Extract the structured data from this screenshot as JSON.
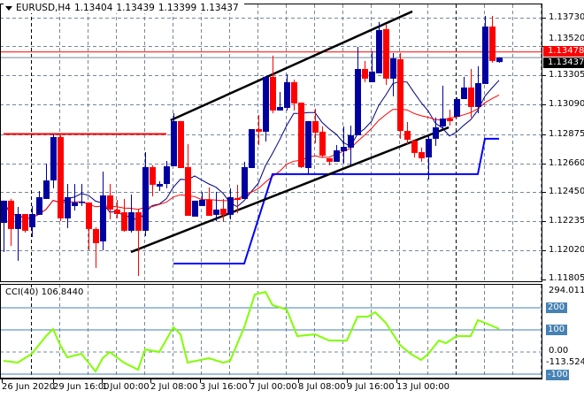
{
  "header": {
    "symbol": "EURUSD,H4",
    "open": "1.13404",
    "high": "1.13439",
    "low": "1.13399",
    "close": "1.13437",
    "menu_icon": "triangle-down-icon"
  },
  "price_axis": {
    "labels": [
      "1.13730",
      "1.13520",
      "1.13305",
      "1.13090",
      "1.12875",
      "1.12660",
      "1.12450",
      "1.12235",
      "1.12020",
      "1.11805"
    ],
    "ask_label": "1.13478",
    "bid_label": "1.13437"
  },
  "time_axis": {
    "labels": [
      "26 Jun 2020",
      "29 Jun 16:00",
      "1 Jul 00:00",
      "2 Jul 08:00",
      "3 Jul 16:00",
      "7 Jul 00:00",
      "8 Jul 08:00",
      "9 Jul 16:00",
      "13 Jul 00:00"
    ]
  },
  "cci": {
    "title": "CCI(40) 106.8440",
    "max_label": "294.0114",
    "min_label": "-113.5241",
    "levels": [
      "200",
      "100",
      "0.00",
      "-100"
    ]
  },
  "colors": {
    "bull": "#0000a0",
    "bear": "#ff0000",
    "fast_ma": "#000080",
    "slow_ma": "#ff0000",
    "step": "#0000ff",
    "cci": "#80ff00",
    "level": "#4682b4"
  },
  "chart_data": {
    "type": "candlestick",
    "price_range": [
      1.11805,
      1.1373
    ],
    "candles": [
      [
        1.12222,
        1.12385,
        1.12008,
        1.12385
      ],
      [
        1.12385,
        1.12398,
        1.12053,
        1.12177
      ],
      [
        1.12177,
        1.12339,
        1.11943,
        1.12287
      ],
      [
        1.12287,
        1.12287,
        1.12151,
        1.12164
      ],
      [
        1.1219,
        1.12346,
        1.12118,
        1.12287
      ],
      [
        1.12281,
        1.12456,
        1.12281,
        1.12411
      ],
      [
        1.12398,
        1.12658,
        1.12398,
        1.12534
      ],
      [
        1.12534,
        1.12872,
        1.12476,
        1.12853
      ],
      [
        1.12853,
        1.12866,
        1.12235,
        1.12255
      ],
      [
        1.12255,
        1.12508,
        1.12183,
        1.12411
      ],
      [
        1.12346,
        1.12508,
        1.12313,
        1.12372
      ],
      [
        1.12372,
        1.12508,
        1.12346,
        1.12378
      ],
      [
        1.12372,
        1.12372,
        1.12021,
        1.12177
      ],
      [
        1.12177,
        1.1219,
        1.11891,
        1.12073
      ],
      [
        1.12086,
        1.12599,
        1.12021,
        1.12424
      ],
      [
        1.12424,
        1.12508,
        1.12248,
        1.1232
      ],
      [
        1.1232,
        1.12391,
        1.12255,
        1.12287
      ],
      [
        1.123,
        1.12398,
        1.12157,
        1.12164
      ],
      [
        1.12164,
        1.12431,
        1.12151,
        1.123
      ],
      [
        1.123,
        1.12326,
        1.11832,
        1.12164
      ],
      [
        1.12164,
        1.12742,
        1.12125,
        1.12632
      ],
      [
        1.12632,
        1.12645,
        1.12417,
        1.12502
      ],
      [
        1.12489,
        1.12528,
        1.12456,
        1.12508
      ],
      [
        1.12508,
        1.12677,
        1.12476,
        1.12638
      ],
      [
        1.12638,
        1.13028,
        1.12638,
        1.1297
      ],
      [
        1.1297,
        1.1297,
        1.12625,
        1.12625
      ],
      [
        1.12632,
        1.12801,
        1.12274,
        1.12274
      ],
      [
        1.12268,
        1.12385,
        1.12268,
        1.12385
      ],
      [
        1.12346,
        1.1245,
        1.12346,
        1.12391
      ],
      [
        1.12391,
        1.12482,
        1.12274,
        1.12274
      ],
      [
        1.12281,
        1.1245,
        1.12235,
        1.1232
      ],
      [
        1.12326,
        1.12398,
        1.12229,
        1.12281
      ],
      [
        1.12281,
        1.12476,
        1.12248,
        1.12411
      ],
      [
        1.12404,
        1.12502,
        1.12294,
        1.12391
      ],
      [
        1.12398,
        1.12671,
        1.12398,
        1.12632
      ],
      [
        1.12625,
        1.12911,
        1.12625,
        1.12911
      ],
      [
        1.12911,
        1.13015,
        1.12794,
        1.12892
      ],
      [
        1.12892,
        1.13301,
        1.1282,
        1.13295
      ],
      [
        1.13295,
        1.13451,
        1.13028,
        1.13048
      ],
      [
        1.13048,
        1.13184,
        1.13048,
        1.13074
      ],
      [
        1.13067,
        1.13314,
        1.13048,
        1.13256
      ],
      [
        1.13256,
        1.13275,
        1.13048,
        1.131
      ],
      [
        1.13106,
        1.13106,
        1.12625,
        1.12632
      ],
      [
        1.12625,
        1.1297,
        1.1258,
        1.1297
      ],
      [
        1.1297,
        1.13061,
        1.12807,
        1.12885
      ],
      [
        1.12892,
        1.12931,
        1.12703,
        1.12716
      ],
      [
        1.12697,
        1.12697,
        1.12645,
        1.12671
      ],
      [
        1.12671,
        1.12794,
        1.12671,
        1.12755
      ],
      [
        1.12749,
        1.12931,
        1.12658,
        1.12781
      ],
      [
        1.12775,
        1.12937,
        1.12645,
        1.12866
      ],
      [
        1.12866,
        1.13516,
        1.12866,
        1.13353
      ],
      [
        1.13353,
        1.13412,
        1.13256,
        1.13282
      ],
      [
        1.13256,
        1.13483,
        1.13256,
        1.13334
      ],
      [
        1.13321,
        1.13698,
        1.13321,
        1.13639
      ],
      [
        1.13646,
        1.13678,
        1.13236,
        1.13282
      ],
      [
        1.13282,
        1.1347,
        1.13152,
        1.13431
      ],
      [
        1.13425,
        1.1347,
        1.1284,
        1.12898
      ],
      [
        1.12898,
        1.12963,
        1.12801,
        1.12833
      ],
      [
        1.12827,
        1.12827,
        1.12703,
        1.12736
      ],
      [
        1.12742,
        1.12775,
        1.12671,
        1.12697
      ],
      [
        1.12703,
        1.12866,
        1.12541,
        1.1284
      ],
      [
        1.1284,
        1.12996,
        1.12788,
        1.12924
      ],
      [
        1.12931,
        1.1323,
        1.12905,
        1.12989
      ],
      [
        1.12989,
        1.13054,
        1.12937,
        1.1297
      ],
      [
        1.13002,
        1.13145,
        1.13002,
        1.13132
      ],
      [
        1.13132,
        1.13295,
        1.13132,
        1.13217
      ],
      [
        1.13217,
        1.13353,
        1.12996,
        1.13074
      ],
      [
        1.13074,
        1.13373,
        1.13028,
        1.13249
      ],
      [
        1.13243,
        1.13743,
        1.13243,
        1.13665
      ],
      [
        1.13665,
        1.13743,
        1.13399,
        1.13412
      ],
      [
        1.13404,
        1.13439,
        1.13399,
        1.13437
      ]
    ],
    "ma_periods": {
      "fast": 8,
      "slow": 21
    },
    "trendlines": [
      {
        "from": [
          24.6,
          1.12976
        ],
        "to": [
          58.75,
          1.13776
        ]
      },
      {
        "from": [
          19,
          1.12008
        ],
        "to": [
          63.9,
          1.12924
        ]
      }
    ],
    "red_level": {
      "from": 1,
      "to": 24,
      "price": 1.12875
    },
    "step_line": [
      [
        25,
        1.11923
      ],
      [
        35,
        1.11923
      ],
      [
        39,
        1.1258
      ],
      [
        68,
        1.1258
      ],
      [
        69,
        1.1284
      ],
      [
        71,
        1.1284
      ]
    ],
    "ask_price": 1.13478,
    "bid_price": 1.13437,
    "cci_range": [
      -113.5241,
      294.0114
    ],
    "cci_values": [
      [
        1,
        -40
      ],
      [
        3,
        -48
      ],
      [
        5,
        -8
      ],
      [
        7,
        72
      ],
      [
        8,
        104
      ],
      [
        9,
        32
      ],
      [
        10,
        -24
      ],
      [
        12,
        -8
      ],
      [
        13,
        -48
      ],
      [
        14,
        -88
      ],
      [
        15,
        -28
      ],
      [
        16,
        0
      ],
      [
        18,
        -48
      ],
      [
        20,
        -80
      ],
      [
        21,
        12
      ],
      [
        23,
        0
      ],
      [
        25,
        112
      ],
      [
        26,
        80
      ],
      [
        27,
        -48
      ],
      [
        30,
        -28
      ],
      [
        32,
        -48
      ],
      [
        33,
        -40
      ],
      [
        35,
        112
      ],
      [
        36.5,
        260
      ],
      [
        38,
        272
      ],
      [
        39,
        212
      ],
      [
        41,
        192
      ],
      [
        42.5,
        72
      ],
      [
        45,
        80
      ],
      [
        47,
        52
      ],
      [
        49.5,
        52
      ],
      [
        51,
        160
      ],
      [
        52.5,
        160
      ],
      [
        53.5,
        180
      ],
      [
        55,
        132
      ],
      [
        57,
        32
      ],
      [
        58.5,
        -8
      ],
      [
        60,
        -36
      ],
      [
        61,
        -8
      ],
      [
        62.5,
        52
      ],
      [
        63.5,
        40
      ],
      [
        65,
        72
      ],
      [
        67,
        72
      ],
      [
        68,
        144
      ],
      [
        69,
        132
      ],
      [
        71,
        104.844
      ]
    ]
  }
}
